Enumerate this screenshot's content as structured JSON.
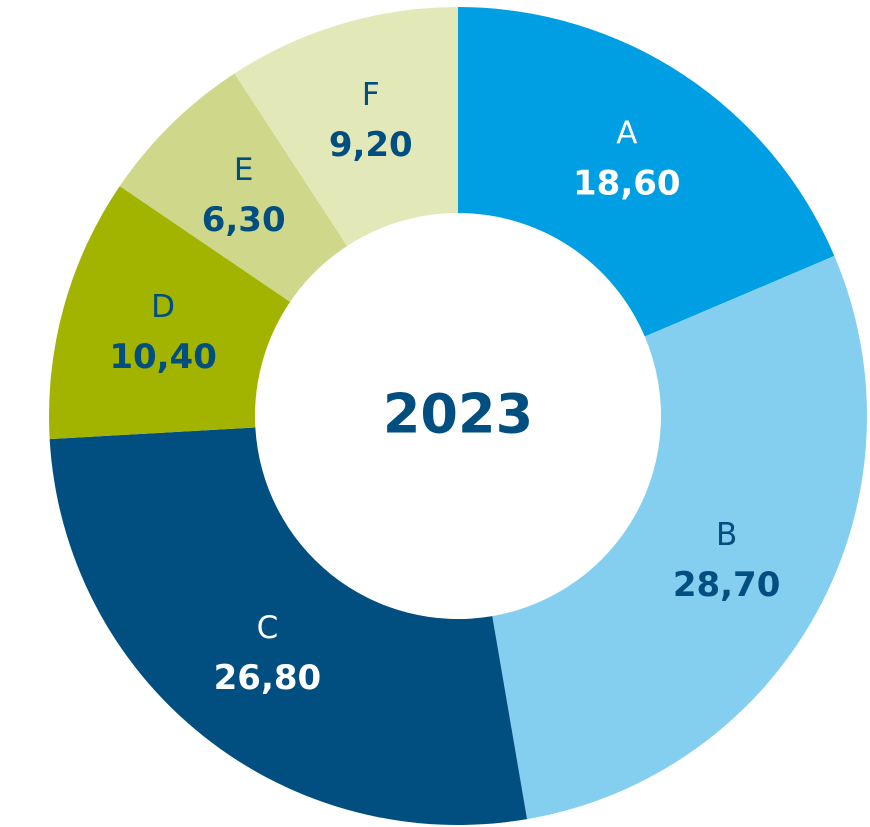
{
  "chart_data": {
    "type": "donut",
    "center_text": "2023",
    "categories": [
      "A",
      "B",
      "C",
      "D",
      "E",
      "F"
    ],
    "values": [
      18.6,
      28.7,
      26.8,
      10.4,
      6.3,
      9.2
    ],
    "value_labels": [
      "18,60",
      "28,70",
      "26,80",
      "10,40",
      "6,30",
      "9,20"
    ],
    "colors": [
      "#009fe3",
      "#84cff0",
      "#004f80",
      "#a2b300",
      "#cfd88a",
      "#e3e8b8"
    ]
  }
}
